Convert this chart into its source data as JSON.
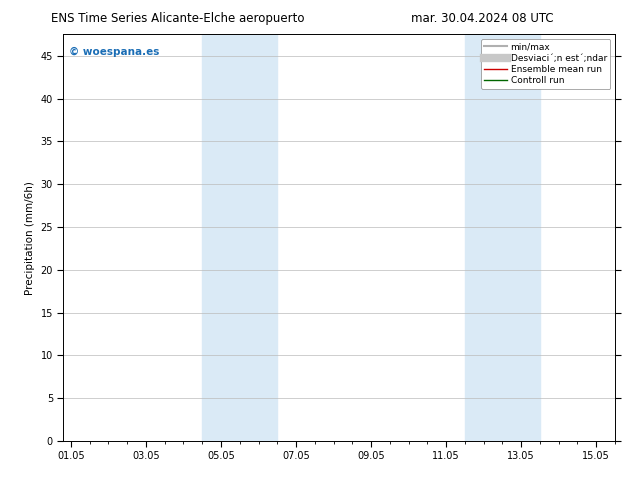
{
  "title_left": "ENS Time Series Alicante-Elche aeropuerto",
  "title_right": "mar. 30.04.2024 08 UTC",
  "ylabel": "Precipitation (mm/6h)",
  "watermark": "© woespana.es",
  "ylim": [
    0,
    47.5
  ],
  "yticks": [
    0,
    5,
    10,
    15,
    20,
    25,
    30,
    35,
    40,
    45
  ],
  "xtick_labels": [
    "01.05",
    "03.05",
    "05.05",
    "07.05",
    "09.05",
    "11.05",
    "13.05",
    "15.05"
  ],
  "xtick_positions": [
    0,
    2,
    4,
    6,
    8,
    10,
    12,
    14
  ],
  "xlim": [
    -0.2,
    14.5
  ],
  "shaded_regions": [
    {
      "xmin": 3.5,
      "xmax": 5.5,
      "color": "#daeaf6",
      "alpha": 1.0
    },
    {
      "xmin": 10.5,
      "xmax": 12.5,
      "color": "#daeaf6",
      "alpha": 1.0
    }
  ],
  "legend_entries": [
    {
      "label": "min/max",
      "color": "#b0b0b0",
      "lw": 1.5,
      "type": "line"
    },
    {
      "label": "Desviaci´;n est´;ndar",
      "color": "#c8c8c8",
      "lw": 6,
      "type": "line"
    },
    {
      "label": "Ensemble mean run",
      "color": "#cc0000",
      "lw": 1.0,
      "type": "line"
    },
    {
      "label": "Controll run",
      "color": "#006600",
      "lw": 1.0,
      "type": "line"
    }
  ],
  "background_color": "#ffffff",
  "plot_bg_color": "#ffffff",
  "grid_color": "#bbbbbb",
  "title_fontsize": 8.5,
  "axis_fontsize": 7.5,
  "tick_fontsize": 7.0,
  "legend_fontsize": 6.5,
  "watermark_color": "#1a6db5",
  "watermark_fontsize": 7.5
}
